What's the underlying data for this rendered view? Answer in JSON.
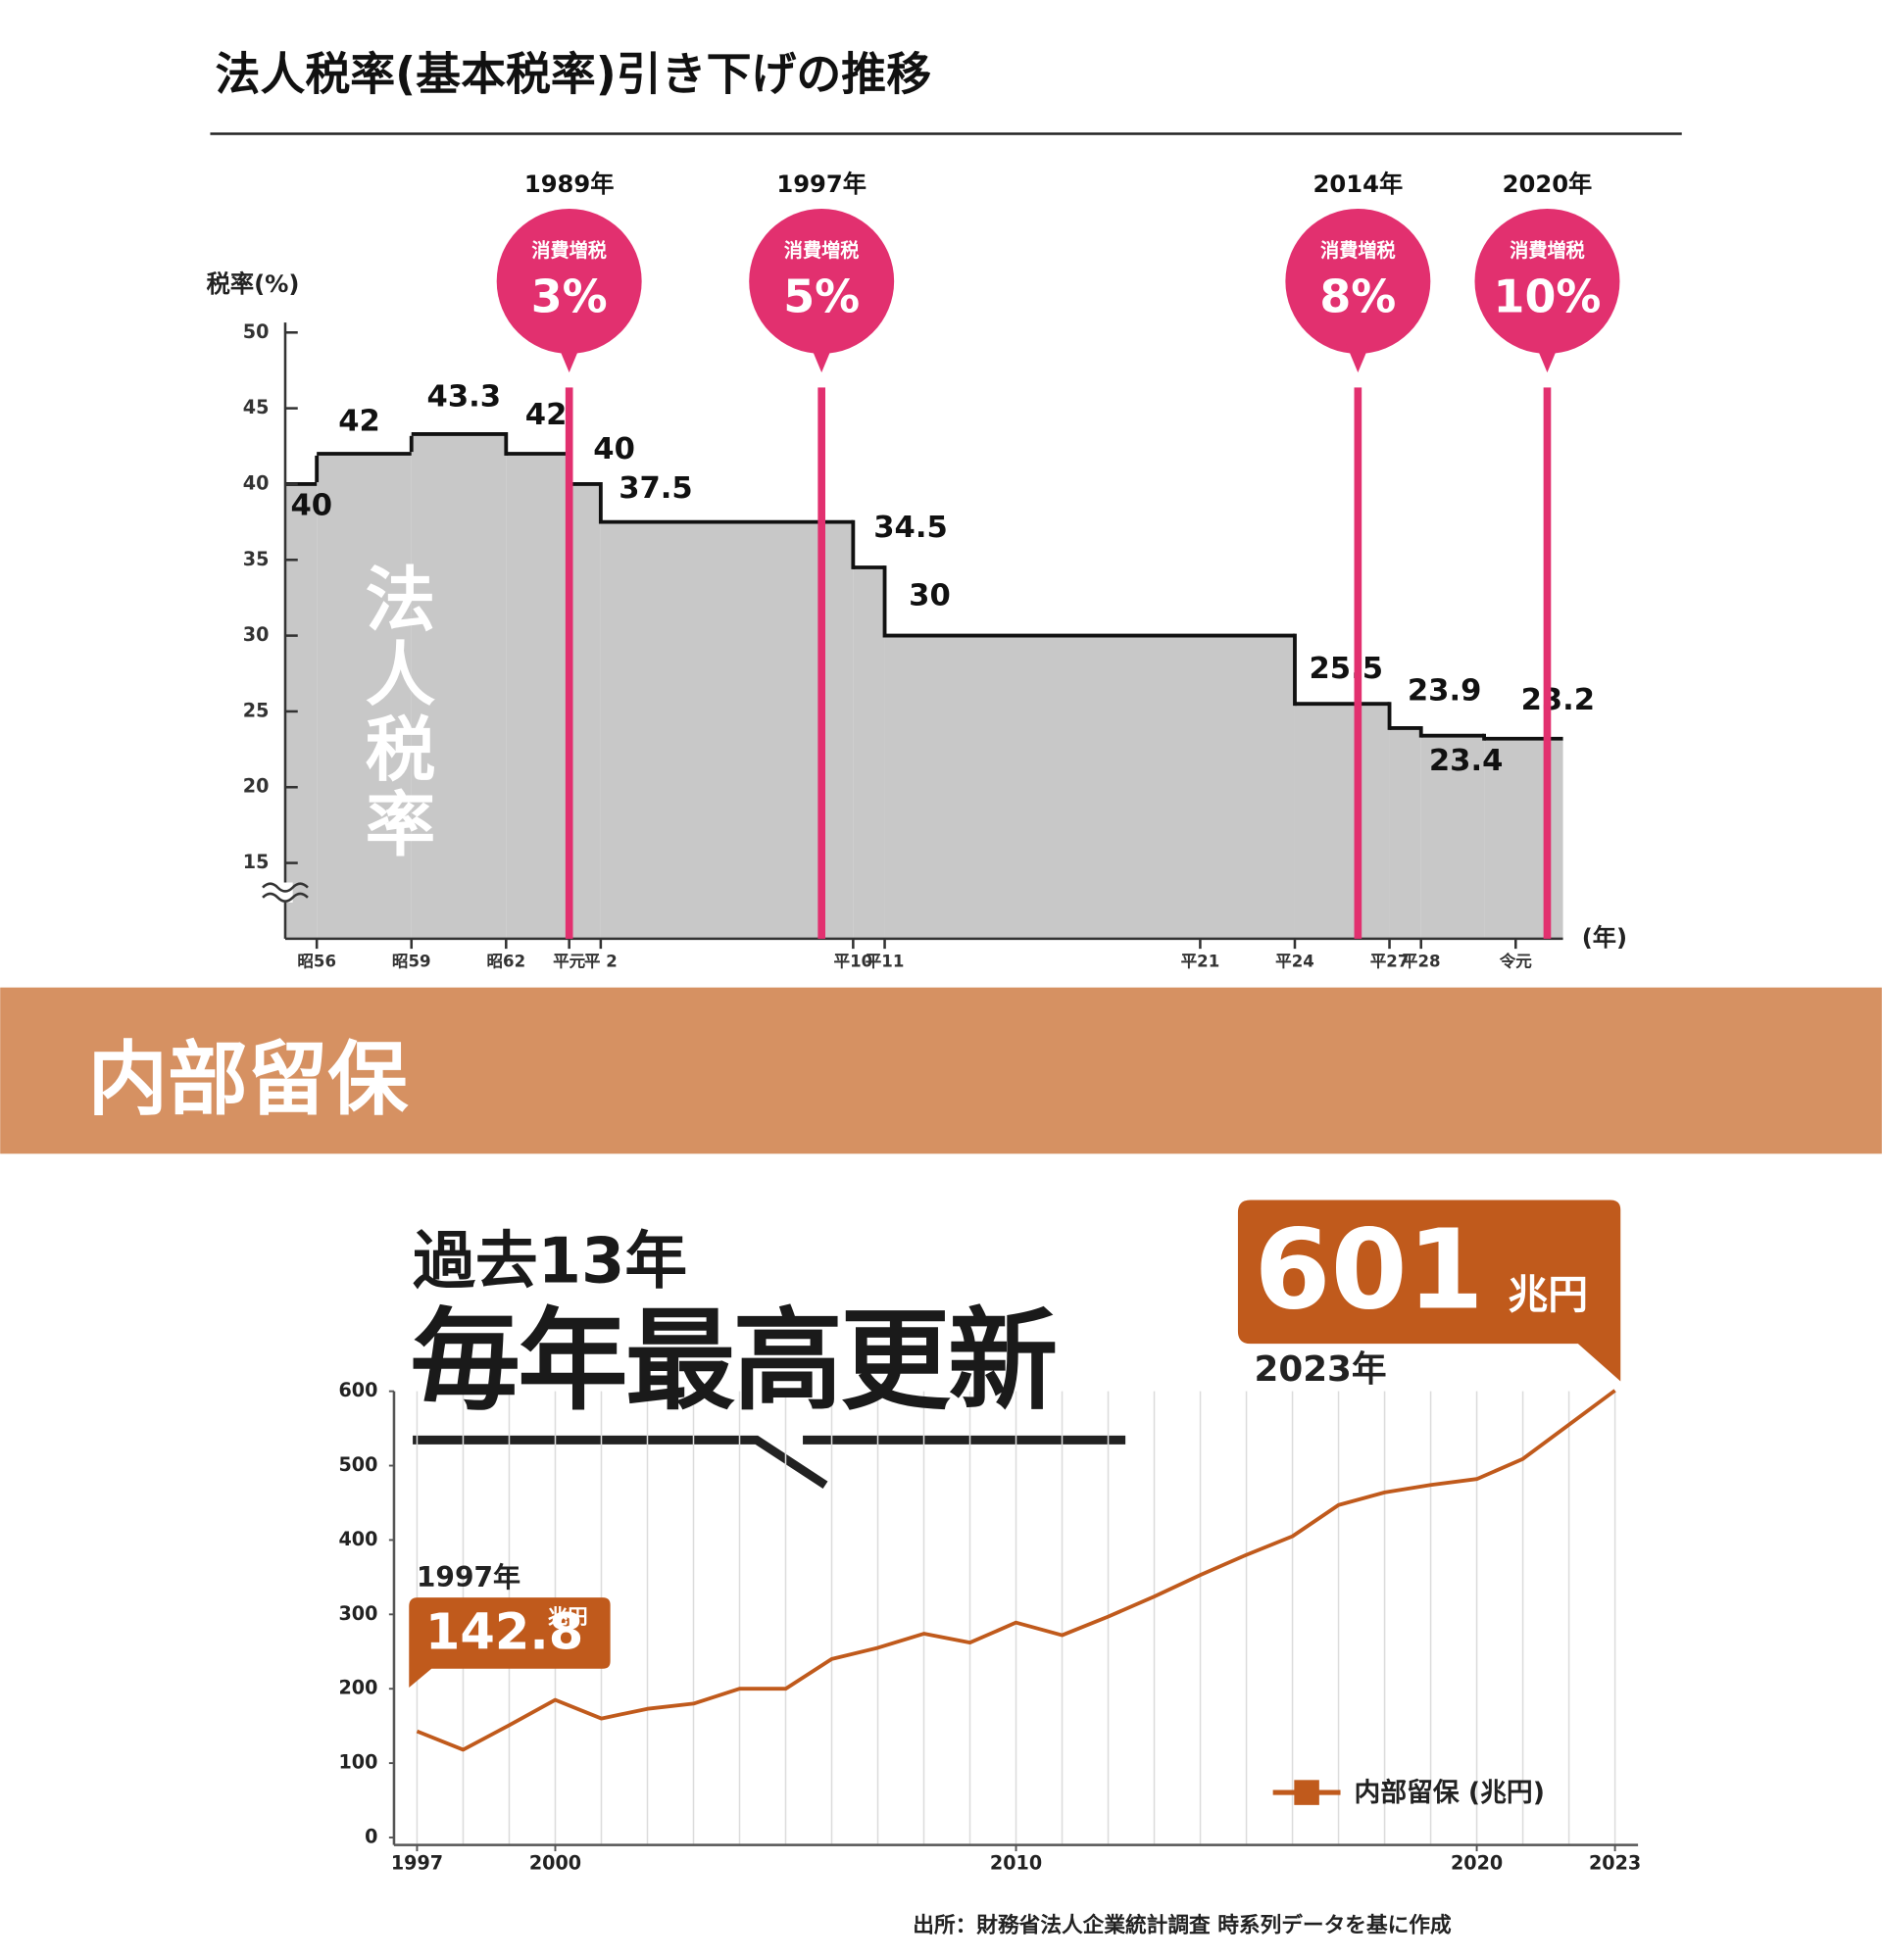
{
  "section_title": "内部留保",
  "chart_data": [
    {
      "type": "step",
      "title": "法人税率(基本税率)引き下げの推移",
      "y_label": "税率(%)",
      "x_label": "(年)",
      "area_label": "法人税率",
      "x": [
        1980,
        1981,
        1984,
        1987,
        1989,
        1990,
        1998,
        1999,
        2012,
        2015,
        2016,
        2018
      ],
      "values": [
        40,
        42,
        43.3,
        42,
        40,
        37.5,
        34.5,
        30,
        25.5,
        23.9,
        23.4,
        23.2
      ],
      "color": "#111111",
      "fill": "#c8c8c8",
      "xlim": [
        1980,
        2020.5
      ],
      "xticks": [
        {
          "value": 1981,
          "label": "昭56"
        },
        {
          "value": 1984,
          "label": "昭59"
        },
        {
          "value": 1987,
          "label": "昭62"
        },
        {
          "value": 1989,
          "label": "平元"
        },
        {
          "value": 1990,
          "label": "平 2"
        },
        {
          "value": 1998,
          "label": "平10"
        },
        {
          "value": 1999,
          "label": "平11"
        },
        {
          "value": 2009,
          "label": "平21"
        },
        {
          "value": 2012,
          "label": "平24"
        },
        {
          "value": 2015,
          "label": "平27"
        },
        {
          "value": 2016,
          "label": "平28"
        },
        {
          "value": 2019,
          "label": "令元"
        }
      ],
      "ylim": [
        10,
        50
      ],
      "yticks": [
        15,
        20,
        25,
        30,
        35,
        40,
        45,
        50
      ],
      "axis_break": true,
      "event_color": "#e2306f",
      "events": [
        {
          "x": 1989,
          "label": "1989年",
          "text": "消費増税",
          "rate": "3%"
        },
        {
          "x": 1997,
          "label": "1997年",
          "text": "消費増税",
          "rate": "5%"
        },
        {
          "x": 2014,
          "label": "2014年",
          "text": "消費増税",
          "rate": "8%"
        },
        {
          "x": 2020,
          "label": "2020年",
          "text": "消費増税",
          "rate": "10%"
        }
      ]
    },
    {
      "type": "line",
      "subtitle": "過去13年",
      "title": "毎年最高更新",
      "x": [
        1997,
        1998,
        1999,
        2000,
        2001,
        2002,
        2003,
        2004,
        2005,
        2006,
        2007,
        2008,
        2009,
        2010,
        2011,
        2012,
        2013,
        2014,
        2015,
        2016,
        2017,
        2018,
        2019,
        2020,
        2021,
        2022,
        2023
      ],
      "series": [
        {
          "name": "内部留保 (兆円)",
          "color": "#c05a1c",
          "values": [
            142.8,
            118,
            151,
            185,
            160,
            173,
            180,
            200,
            200,
            240,
            255,
            274,
            262,
            289,
            272,
            297,
            324,
            353,
            380,
            405,
            447,
            464,
            474,
            482,
            509,
            555,
            601
          ]
        }
      ],
      "xlim": [
        1996.5,
        2023.5
      ],
      "xticks": [
        1997,
        2000,
        2010,
        2020,
        2023
      ],
      "ylim": [
        0,
        600
      ],
      "yticks": [
        0,
        100,
        200,
        300,
        400,
        500,
        600
      ],
      "grid": "x",
      "unit": "兆円",
      "callouts": [
        {
          "x": 1997,
          "label": "1997年"
        },
        {
          "x": 2023,
          "label": "2023年"
        }
      ],
      "source": "出所：財務省法人企業統計調査 時系列データを基に作成"
    }
  ]
}
